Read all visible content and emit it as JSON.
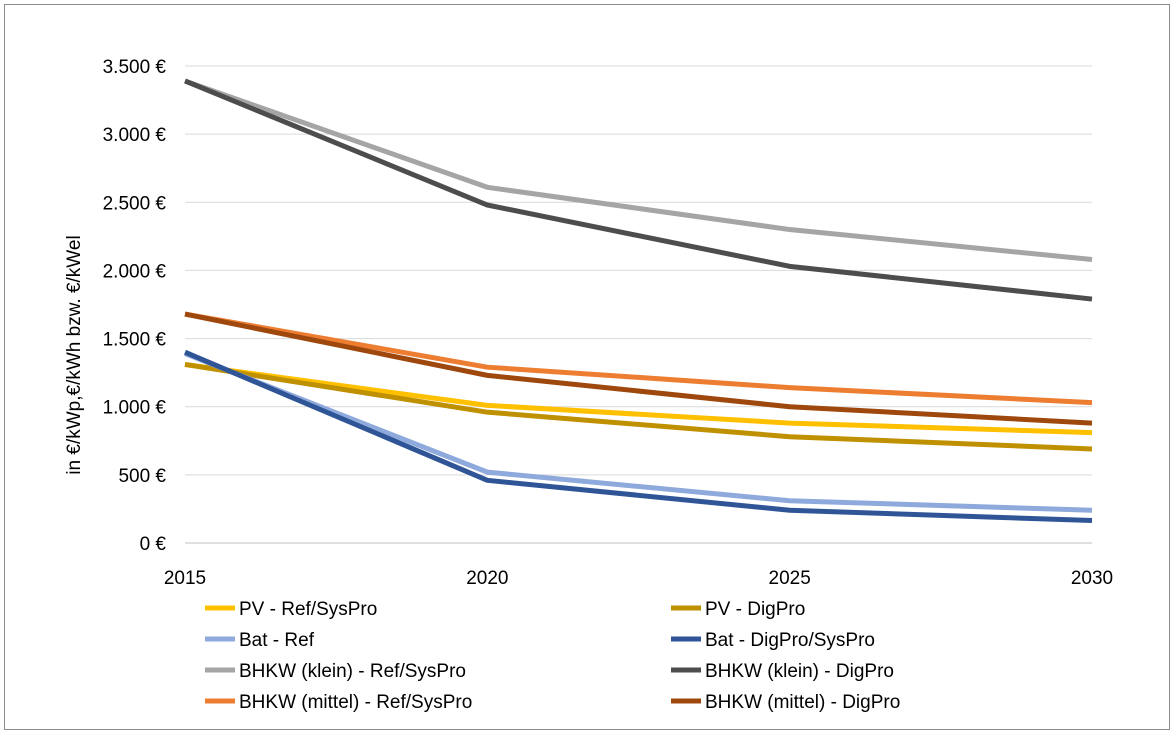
{
  "chart_data": {
    "type": "line",
    "title": "",
    "xlabel": "",
    "ylabel": "in €/kWp,€/kWh bzw. €/kWel",
    "x": [
      2015,
      2020,
      2025,
      2030
    ],
    "x_tick_labels": [
      "2015",
      "2020",
      "2025",
      "2030"
    ],
    "ylim": [
      0,
      3500
    ],
    "y_ticks": [
      0,
      500,
      1000,
      1500,
      2000,
      2500,
      3000,
      3500
    ],
    "y_tick_labels": [
      "0 €",
      "500 €",
      "1.000 €",
      "1.500 €",
      "2.000 €",
      "2.500 €",
      "3.000 €",
      "3.500 €"
    ],
    "grid": true,
    "legend_position": "bottom",
    "series": [
      {
        "name": "PV - Ref/SysPro",
        "color": "#FFC000",
        "values": [
          1310,
          1010,
          880,
          810
        ]
      },
      {
        "name": "PV - DigPro",
        "color": "#BF9000",
        "values": [
          1310,
          960,
          780,
          690
        ]
      },
      {
        "name": "Bat - Ref",
        "color": "#8EA9DB",
        "values": [
          1390,
          520,
          310,
          240
        ]
      },
      {
        "name": "Bat - DigPro/SysPro",
        "color": "#2F5597",
        "values": [
          1400,
          460,
          240,
          165
        ]
      },
      {
        "name": "BHKW (klein) - Ref/SysPro",
        "color": "#A5A5A5",
        "values": [
          3390,
          2610,
          2300,
          2080
        ]
      },
      {
        "name": "BHKW (klein) - DigPro",
        "color": "#4D4D4D",
        "values": [
          3390,
          2480,
          2030,
          1790
        ]
      },
      {
        "name": "BHKW (mittel) - Ref/SysPro",
        "color": "#ED7D31",
        "values": [
          1680,
          1290,
          1140,
          1030
        ]
      },
      {
        "name": "BHKW (mittel) - DigPro",
        "color": "#9E480E",
        "values": [
          1680,
          1230,
          1000,
          880
        ]
      }
    ]
  }
}
